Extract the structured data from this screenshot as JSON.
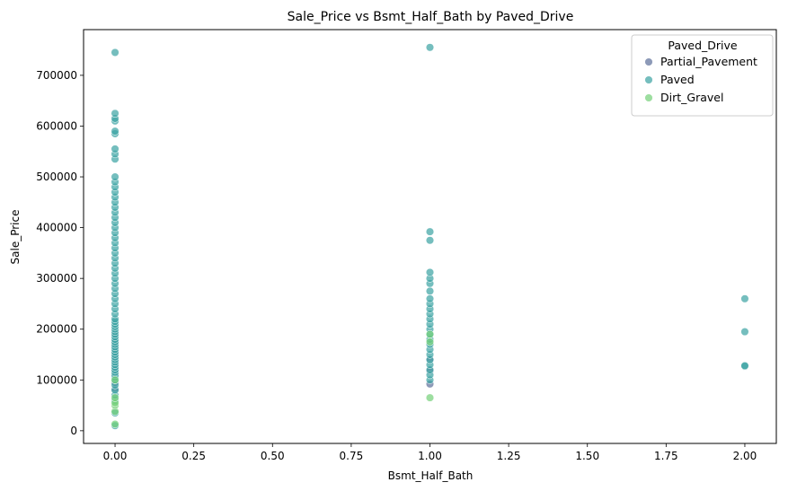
{
  "chart_data": {
    "type": "scatter",
    "title": "Sale_Price vs Bsmt_Half_Bath by Paved_Drive",
    "xlabel": "Bsmt_Half_Bath",
    "ylabel": "Sale_Price",
    "xlim": [
      -0.1,
      2.1
    ],
    "ylim": [
      -25000,
      790000
    ],
    "xticks": [
      0.0,
      0.25,
      0.5,
      0.75,
      1.0,
      1.25,
      1.5,
      1.75,
      2.0
    ],
    "xtick_labels": [
      "0.00",
      "0.25",
      "0.50",
      "0.75",
      "1.00",
      "1.25",
      "1.50",
      "1.75",
      "2.00"
    ],
    "yticks": [
      0,
      100000,
      200000,
      300000,
      400000,
      500000,
      600000,
      700000
    ],
    "ytick_labels": [
      "0",
      "100000",
      "200000",
      "300000",
      "400000",
      "500000",
      "600000",
      "700000"
    ],
    "grid": false,
    "legend": {
      "title": "Paved_Drive",
      "placement": "top-right"
    },
    "series": [
      {
        "name": "Partial_Pavement",
        "color": "#5c6f9a",
        "x": [
          0,
          0,
          0,
          0,
          0,
          0,
          0,
          0,
          0,
          0,
          0,
          1,
          1,
          1
        ],
        "y": [
          82000,
          95000,
          110000,
          120000,
          128000,
          136000,
          145000,
          155000,
          165000,
          175000,
          190000,
          92000,
          118000,
          140000
        ]
      },
      {
        "name": "Paved",
        "color": "#3ba3a3",
        "x": [
          0,
          0,
          0,
          0,
          0,
          0,
          0,
          0,
          0,
          0,
          0,
          0,
          0,
          0,
          0,
          0,
          0,
          0,
          0,
          0,
          0,
          0,
          0,
          0,
          0,
          0,
          0,
          0,
          0,
          0,
          0,
          0,
          0,
          0,
          0,
          0,
          0,
          0,
          0,
          0,
          0,
          0,
          0,
          0,
          0,
          0,
          0,
          0,
          0,
          0,
          0,
          0,
          0,
          0,
          0,
          0,
          0,
          0,
          0,
          0,
          0,
          0,
          0,
          0,
          0,
          0,
          0,
          0,
          1,
          1,
          1,
          1,
          1,
          1,
          1,
          1,
          1,
          1,
          1,
          1,
          1,
          1,
          1,
          1,
          1,
          1,
          1,
          1,
          1,
          1,
          1,
          1,
          2,
          2,
          2,
          2
        ],
        "y": [
          35000,
          60000,
          70000,
          80000,
          90000,
          100000,
          105000,
          110000,
          115000,
          120000,
          125000,
          130000,
          135000,
          140000,
          145000,
          150000,
          155000,
          160000,
          165000,
          170000,
          175000,
          180000,
          185000,
          190000,
          195000,
          200000,
          205000,
          210000,
          215000,
          220000,
          230000,
          240000,
          250000,
          260000,
          270000,
          280000,
          290000,
          300000,
          310000,
          320000,
          330000,
          340000,
          350000,
          360000,
          370000,
          380000,
          390000,
          400000,
          410000,
          420000,
          430000,
          440000,
          450000,
          460000,
          470000,
          480000,
          490000,
          500000,
          535000,
          545000,
          555000,
          585000,
          590000,
          610000,
          615000,
          625000,
          745000,
          10000,
          100000,
          110000,
          120000,
          130000,
          140000,
          150000,
          160000,
          170000,
          180000,
          190000,
          200000,
          210000,
          220000,
          230000,
          240000,
          250000,
          260000,
          275000,
          290000,
          300000,
          312000,
          375000,
          392000,
          755000,
          127000,
          128000,
          195000,
          260000
        ]
      },
      {
        "name": "Dirt_Gravel",
        "color": "#73d078",
        "x": [
          0,
          0,
          0,
          0,
          0,
          0,
          1,
          1,
          1
        ],
        "y": [
          13000,
          38000,
          50000,
          55000,
          65000,
          100000,
          65000,
          175000,
          190000
        ]
      }
    ]
  }
}
